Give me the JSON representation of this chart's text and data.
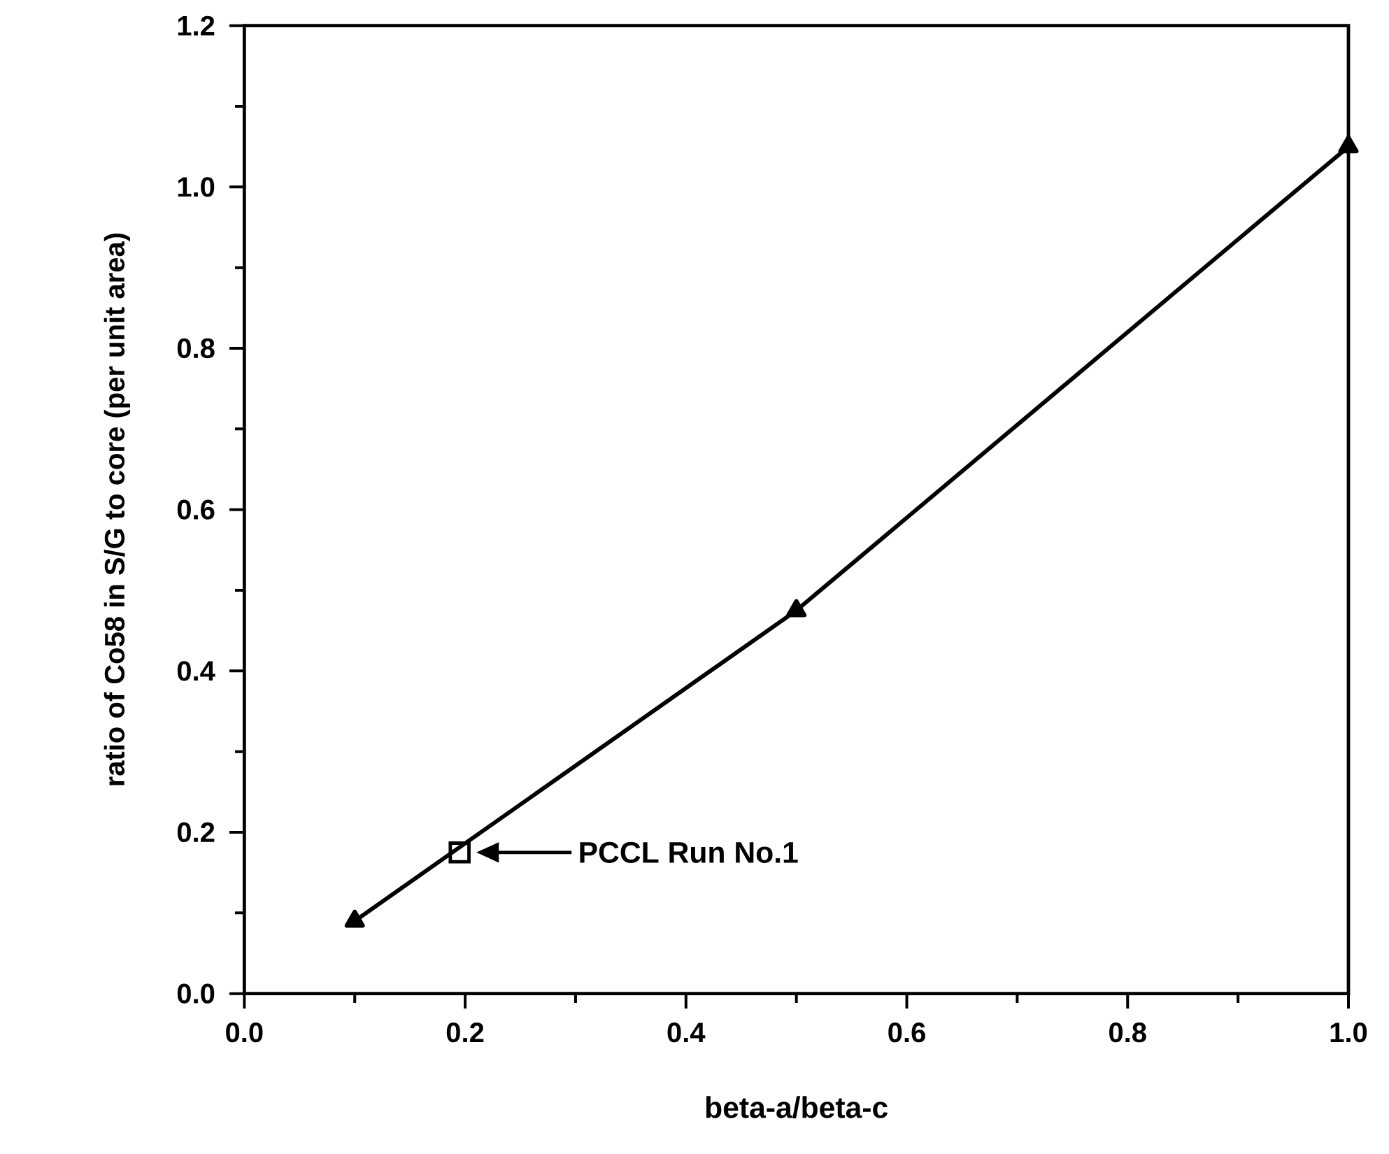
{
  "chart_data": {
    "type": "line",
    "xlabel": "beta-a/beta-c",
    "ylabel": "ratio of Co58 in S/G to core (per unit area)",
    "series": [
      {
        "type": "line",
        "color": "#000000",
        "marker": "triangle",
        "x": [
          0.1,
          0.5,
          1.0
        ],
        "values": [
          0.09,
          0.475,
          1.05
        ]
      },
      {
        "type": "scatter",
        "color": "#000000",
        "marker": "square",
        "x": [
          0.195
        ],
        "values": [
          0.175
        ]
      }
    ],
    "annotations": [
      "PCCL Run No.1"
    ],
    "xlim": [
      0,
      1.0
    ],
    "ylim": [
      0,
      1.2
    ],
    "xticks": [
      {
        "value": 0,
        "label": "0.0"
      },
      {
        "value": 0.2,
        "label": "0.2"
      },
      {
        "value": 0.4,
        "label": "0.4"
      },
      {
        "value": 0.6,
        "label": "0.6"
      },
      {
        "value": 0.8,
        "label": "0.8"
      },
      {
        "value": 1.0,
        "label": "1.0"
      }
    ],
    "yticks": [
      {
        "value": 0,
        "label": "0.0"
      },
      {
        "value": 0.2,
        "label": "0.2"
      },
      {
        "value": 0.4,
        "label": "0.4"
      },
      {
        "value": 0.6,
        "label": "0.6"
      },
      {
        "value": 0.8,
        "label": "0.8"
      },
      {
        "value": 1.0,
        "label": "1.0"
      },
      {
        "value": 1.2,
        "label": "1.2"
      }
    ],
    "grid": false
  }
}
